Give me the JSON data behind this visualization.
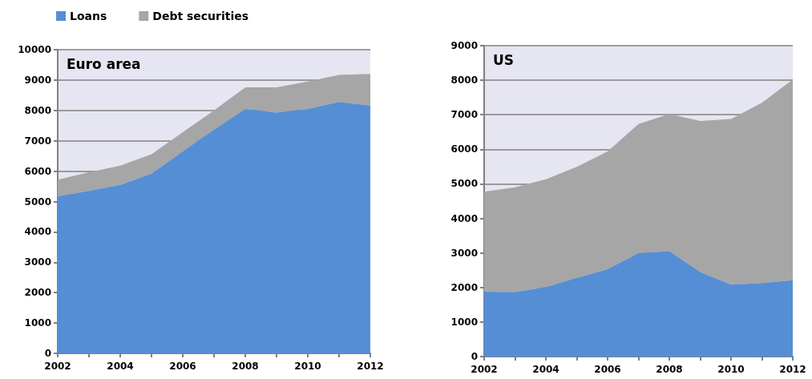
{
  "chart_data": [
    {
      "type": "area",
      "title": "Euro area",
      "stacked": true,
      "legend": "top left",
      "grid": "y",
      "x": [
        2002,
        2003,
        2004,
        2005,
        2006,
        2007,
        2008,
        2009,
        2010,
        2011,
        2012
      ],
      "xlim": [
        2002,
        2012
      ],
      "xticks": [
        2002,
        {
          "value": 2003,
          "label": null
        },
        2004,
        {
          "value": 2005,
          "label": null
        },
        2006,
        {
          "value": 2007,
          "label": null
        },
        2008,
        {
          "value": 2009,
          "label": null
        },
        2010,
        {
          "value": 2011,
          "label": null
        },
        2012
      ],
      "ylim": [
        0,
        10000
      ],
      "yticks": [
        0,
        1000,
        2000,
        3000,
        4000,
        5000,
        6000,
        7000,
        8000,
        9000,
        10000
      ],
      "series": [
        {
          "name": "Loans",
          "color": "#558ed5",
          "values": [
            5170,
            5350,
            5550,
            5920,
            6650,
            7370,
            8050,
            7930,
            8050,
            8280,
            8160
          ]
        },
        {
          "name": "Debt securities",
          "color": "#a6a6a6",
          "values": [
            550,
            610,
            630,
            640,
            630,
            630,
            710,
            830,
            900,
            890,
            1040
          ]
        }
      ]
    },
    {
      "type": "area",
      "title": "US",
      "stacked": true,
      "legend": false,
      "grid": "y",
      "x": [
        2002,
        2003,
        2004,
        2005,
        2006,
        2007,
        2008,
        2009,
        2010,
        2011,
        2012
      ],
      "xlim": [
        2002,
        2012
      ],
      "xticks": [
        2002,
        {
          "value": 2003,
          "label": null
        },
        2004,
        {
          "value": 2005,
          "label": null
        },
        2006,
        {
          "value": 2007,
          "label": null
        },
        2008,
        {
          "value": 2009,
          "label": null
        },
        2010,
        {
          "value": 2011,
          "label": null
        },
        2012
      ],
      "ylim": [
        0,
        9000
      ],
      "yticks": [
        0,
        1000,
        2000,
        3000,
        4000,
        5000,
        6000,
        7000,
        8000,
        9000
      ],
      "series": [
        {
          "color": "#558ed5",
          "values": [
            1880,
            1870,
            2010,
            2280,
            2530,
            2990,
            3050,
            2450,
            2080,
            2130,
            2210
          ]
        },
        {
          "color": "#a6a6a6",
          "values": [
            2890,
            3030,
            3120,
            3210,
            3410,
            3740,
            3970,
            4370,
            4800,
            5220,
            5810
          ]
        }
      ]
    }
  ]
}
